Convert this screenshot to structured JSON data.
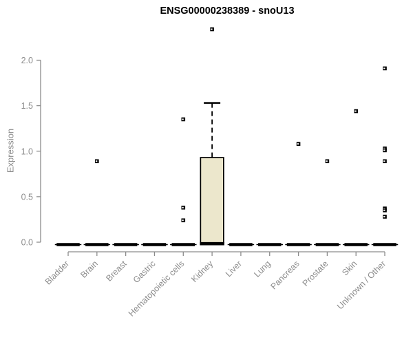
{
  "title": "ENSG00000238389 - snoU13",
  "chart_data": {
    "type": "boxplot",
    "title": "ENSG00000238389 - snoU13",
    "xlabel": "",
    "ylabel": "Expression",
    "ylim": [
      0.0,
      2.0
    ],
    "yticks": [
      "0.0",
      "0.5",
      "1.0",
      "1.5",
      "2.0"
    ],
    "ytick_values": [
      0.0,
      0.5,
      1.0,
      1.5,
      2.0
    ],
    "grid": false,
    "legend": false,
    "categories": [
      "Bladder",
      "Brain",
      "Breast",
      "Gastric",
      "Hematopoietic cells",
      "Kidney",
      "Liver",
      "Lung",
      "Pancreas",
      "Prostate",
      "Skin",
      "Unknown / Other"
    ],
    "boxes": [
      {
        "category": "Bladder",
        "q1": 0.0,
        "median": 0.0,
        "q3": 0.0,
        "whisker_low": 0.0,
        "whisker_high": 0.0,
        "outliers": []
      },
      {
        "category": "Brain",
        "q1": 0.0,
        "median": 0.0,
        "q3": 0.0,
        "whisker_low": 0.0,
        "whisker_high": 0.0,
        "outliers": [
          0.89
        ]
      },
      {
        "category": "Breast",
        "q1": 0.0,
        "median": 0.0,
        "q3": 0.0,
        "whisker_low": 0.0,
        "whisker_high": 0.0,
        "outliers": []
      },
      {
        "category": "Gastric",
        "q1": 0.0,
        "median": 0.0,
        "q3": 0.0,
        "whisker_low": 0.0,
        "whisker_high": 0.0,
        "outliers": []
      },
      {
        "category": "Hematopoietic cells",
        "q1": 0.0,
        "median": 0.0,
        "q3": 0.0,
        "whisker_low": 0.0,
        "whisker_high": 0.0,
        "outliers": [
          1.35,
          0.38,
          0.24
        ]
      },
      {
        "category": "Kidney",
        "q1": 0.0,
        "median": 0.01,
        "q3": 0.93,
        "whisker_low": 0.0,
        "whisker_high": 1.53,
        "outliers": [
          2.34
        ]
      },
      {
        "category": "Liver",
        "q1": 0.0,
        "median": 0.0,
        "q3": 0.0,
        "whisker_low": 0.0,
        "whisker_high": 0.0,
        "outliers": []
      },
      {
        "category": "Lung",
        "q1": 0.0,
        "median": 0.0,
        "q3": 0.0,
        "whisker_low": 0.0,
        "whisker_high": 0.0,
        "outliers": []
      },
      {
        "category": "Pancreas",
        "q1": 0.0,
        "median": 0.0,
        "q3": 0.0,
        "whisker_low": 0.0,
        "whisker_high": 0.0,
        "outliers": [
          1.08
        ]
      },
      {
        "category": "Prostate",
        "q1": 0.0,
        "median": 0.0,
        "q3": 0.0,
        "whisker_low": 0.0,
        "whisker_high": 0.0,
        "outliers": [
          0.89
        ]
      },
      {
        "category": "Skin",
        "q1": 0.0,
        "median": 0.0,
        "q3": 0.0,
        "whisker_low": 0.0,
        "whisker_high": 0.0,
        "outliers": [
          1.44
        ]
      },
      {
        "category": "Unknown / Other",
        "q1": 0.0,
        "median": 0.0,
        "q3": 0.0,
        "whisker_low": 0.0,
        "whisker_high": 0.0,
        "outliers": [
          1.91,
          1.03,
          1.01,
          0.89,
          0.37,
          0.35,
          0.28
        ]
      }
    ],
    "colors": {
      "box_fill": "#ece7cc",
      "box_border": "#000000",
      "median": "#000000",
      "whisker": "#000000",
      "outlier": "#000000",
      "axis": "#8c8c8c",
      "tick_label": "#8c8c8c",
      "title": "#000000",
      "background": "#ffffff"
    }
  }
}
